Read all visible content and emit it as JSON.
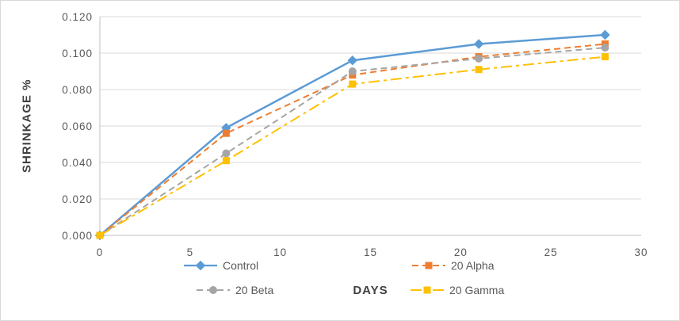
{
  "figure": {
    "background": "#ffffff",
    "border_color": "#d9d9d9"
  },
  "style": {
    "gridline_color": "#d9d9d9",
    "axis_line_color": "#bfbfbf",
    "tick_label_color": "#595959",
    "axis_title_color": "#404040",
    "legend_text_color": "#595959"
  },
  "chart_data": {
    "type": "line",
    "title": "",
    "xlabel": "DAYS",
    "ylabel": "SHRINKAGE %",
    "x": [
      0,
      7,
      14,
      21,
      28
    ],
    "series": [
      {
        "name": "Control",
        "color": "#5b9bd5",
        "marker": "diamond",
        "dash": "solid",
        "line_width": 2.5,
        "values": [
          0.0,
          0.059,
          0.096,
          0.105,
          0.11
        ]
      },
      {
        "name": "20 Alpha",
        "color": "#ed7d31",
        "marker": "square",
        "dash": "dash",
        "line_width": 2,
        "values": [
          0.0,
          0.056,
          0.088,
          0.098,
          0.105
        ]
      },
      {
        "name": "20 Beta",
        "color": "#a5a5a5",
        "marker": "circle",
        "dash": "dash",
        "line_width": 2,
        "values": [
          0.0,
          0.045,
          0.09,
          0.097,
          0.103
        ]
      },
      {
        "name": "20 Gamma",
        "color": "#ffc000",
        "marker": "square",
        "dash": "long_dash_dot",
        "line_width": 2,
        "values": [
          0.0,
          0.041,
          0.083,
          0.091,
          0.098
        ]
      }
    ],
    "xlim": [
      0,
      30
    ],
    "ylim": [
      0,
      0.12
    ],
    "x_tick_values": [
      0,
      5,
      10,
      15,
      20,
      25,
      30
    ],
    "x_tick_labels": [
      "0",
      "5",
      "10",
      "15",
      "20",
      "25",
      "30"
    ],
    "y_tick_values": [
      0,
      0.02,
      0.04,
      0.06,
      0.08,
      0.1,
      0.12
    ],
    "y_tick_labels": [
      "0.000",
      "0.020",
      "0.040",
      "0.060",
      "0.080",
      "0.100",
      "0.120"
    ],
    "grid": "horizontal",
    "legend_position": "bottom"
  }
}
